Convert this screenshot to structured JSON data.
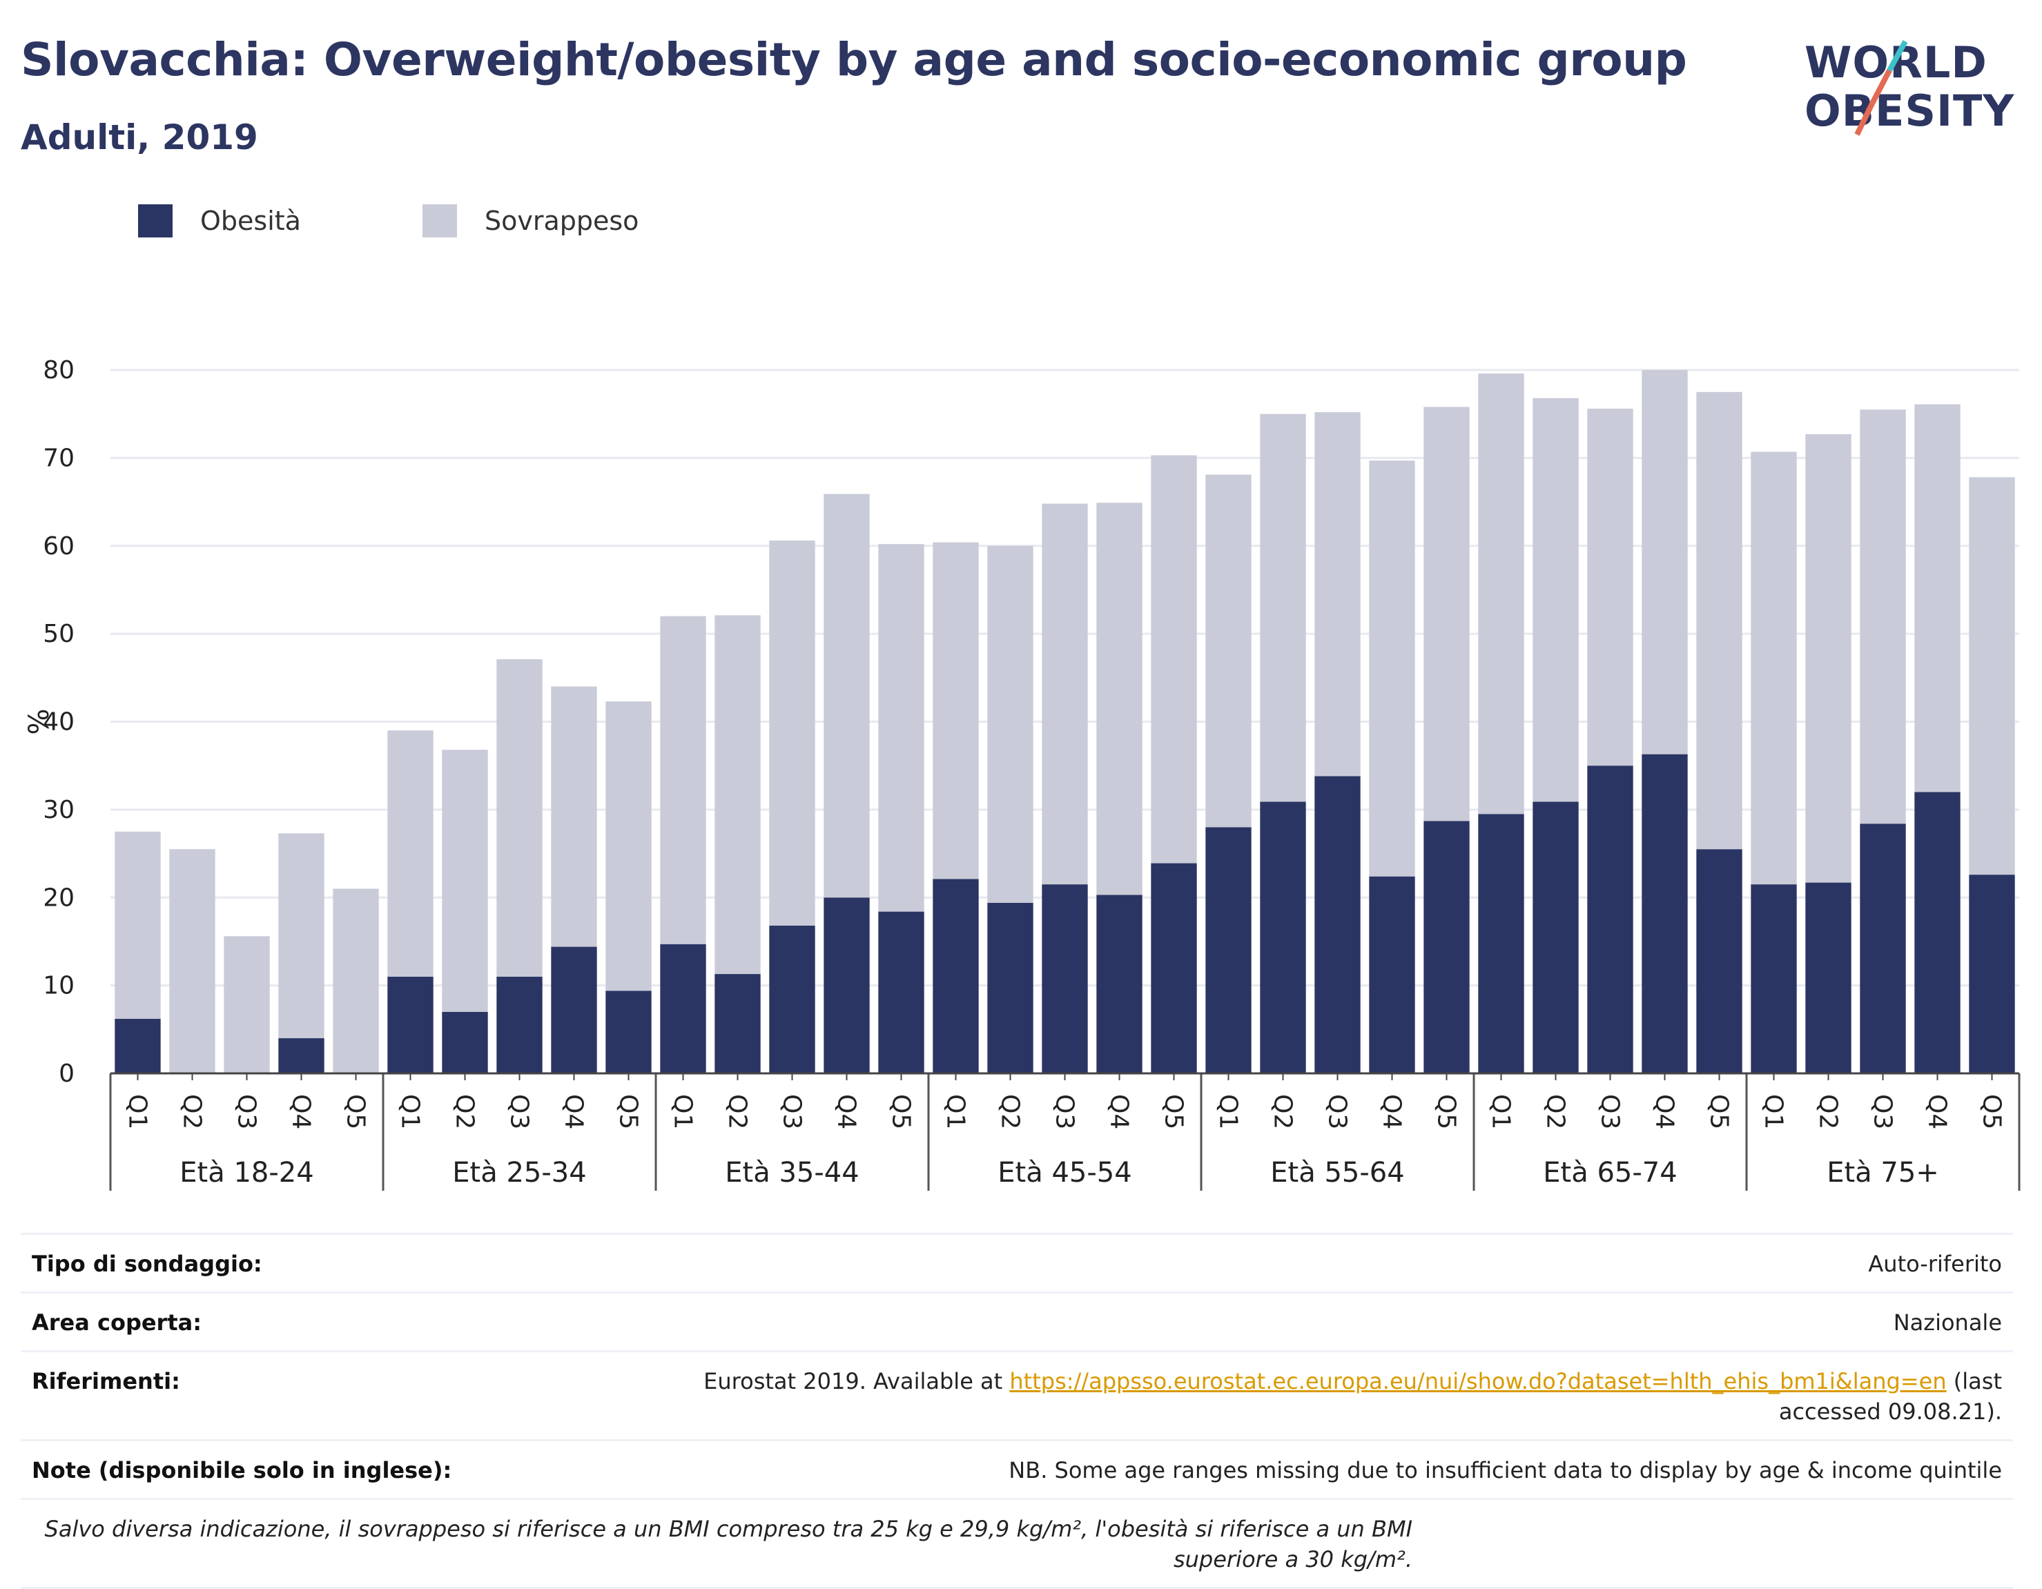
{
  "header": {
    "title": "Slovacchia: Overweight/obesity by age and socio-economic group",
    "subtitle": "Adulti, 2019"
  },
  "logo": {
    "line1": "WORLD",
    "line2": "OBESITY",
    "accent_colors": [
      "#3ec1c9",
      "#e36b53"
    ]
  },
  "legend": [
    {
      "label": "Obesità",
      "color": "#2a3563"
    },
    {
      "label": "Sovrappeso",
      "color": "#c9cbd8"
    }
  ],
  "chart_data": {
    "type": "bar",
    "stacked": true,
    "ylabel": "%",
    "ylim": [
      0,
      80
    ],
    "yticks": [
      0,
      10,
      20,
      30,
      40,
      50,
      60,
      70,
      80
    ],
    "grid": true,
    "legend_position": "top-left",
    "groups": [
      "Età 18-24",
      "Età 25-34",
      "Età 35-44",
      "Età 45-54",
      "Età 55-64",
      "Età 65-74",
      "Età 75+"
    ],
    "quintiles": [
      "Q1",
      "Q2",
      "Q3",
      "Q4",
      "Q5"
    ],
    "series": [
      {
        "name": "Obesità",
        "color": "#2a3563",
        "values": [
          [
            6.2,
            0,
            0,
            4.0,
            0
          ],
          [
            11.0,
            7.0,
            11.0,
            14.4,
            9.4
          ],
          [
            14.7,
            11.3,
            16.8,
            20.0,
            18.4
          ],
          [
            22.1,
            19.4,
            21.5,
            20.3,
            23.9
          ],
          [
            28.0,
            30.9,
            33.8,
            22.4,
            28.7
          ],
          [
            29.5,
            30.9,
            35.0,
            36.3,
            25.5
          ],
          [
            21.5,
            21.7,
            28.4,
            32.0,
            22.6
          ]
        ]
      },
      {
        "name": "Sovrappeso",
        "color": "#c9cbd8",
        "values": [
          [
            21.3,
            25.5,
            15.6,
            23.3,
            21.0
          ],
          [
            28.0,
            29.8,
            36.1,
            29.6,
            32.9
          ],
          [
            37.3,
            40.8,
            43.8,
            45.9,
            41.8
          ],
          [
            38.3,
            40.6,
            43.3,
            44.6,
            46.4
          ],
          [
            40.1,
            44.1,
            41.4,
            47.3,
            47.1
          ],
          [
            50.1,
            45.9,
            40.6,
            43.7,
            52.0
          ],
          [
            49.2,
            51.0,
            47.1,
            44.1,
            45.2
          ]
        ]
      }
    ]
  },
  "info": {
    "survey_type_label": "Tipo di sondaggio:",
    "survey_type_value": "Auto-riferito",
    "area_label": "Area coperta:",
    "area_value": "Nazionale",
    "references_label": "Riferimenti:",
    "references_prefix": "Eurostat 2019. Available at ",
    "references_link": "https://appsso.eurostat.ec.europa.eu/nui/show.do?dataset=hlth_ehis_bm1i&lang=en",
    "references_suffix": " (last accessed 09.08.21).",
    "notes_label": "Note (disponibile solo in inglese):",
    "notes_value": "NB. Some age ranges missing due to insufficient data to display by age & income quintile",
    "footnote": "Salvo diversa indicazione, il sovrappeso si riferisce a un BMI compreso tra 25 kg e 29,9 kg/m², l'obesità si riferisce a un BMI superiore a 30 kg/m²."
  }
}
